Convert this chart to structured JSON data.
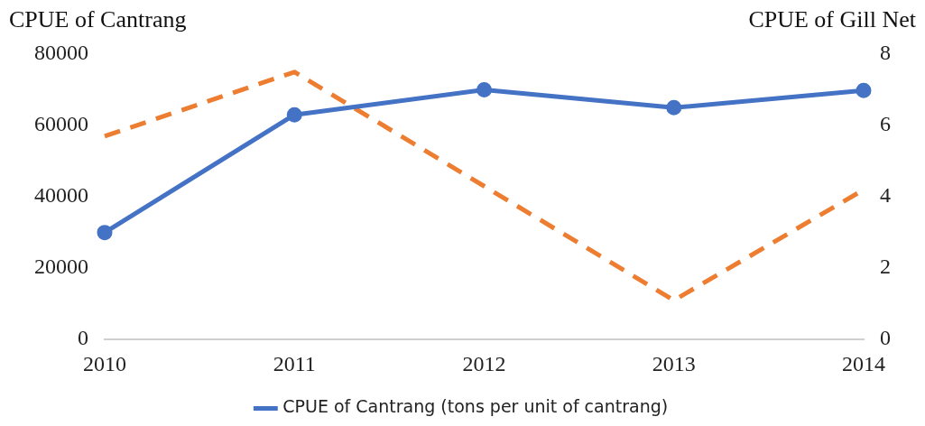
{
  "chart_data": {
    "type": "line",
    "ylabel": "CPUE of Cantrang",
    "y2label": "CPUE of Gill Net",
    "categories": [
      "2010",
      "2011",
      "2012",
      "2013",
      "2014"
    ],
    "series": [
      {
        "name": "CPUE of Cantrang (tons per unit of cantrang)",
        "color": "#4472c4",
        "values": [
          30000,
          63000,
          70000,
          65000,
          69800
        ],
        "marker": "circle",
        "line_style": "solid"
      },
      {
        "color": "#ed7d31",
        "axis": "y2",
        "values": [
          5.7,
          7.5,
          4.3,
          1.1,
          4.2
        ],
        "marker": "none",
        "line_style": "dashed"
      }
    ],
    "ylim": [
      0,
      80000
    ],
    "yticks": [
      0,
      20000,
      40000,
      60000,
      80000
    ],
    "y2lim": [
      0,
      8
    ],
    "y2ticks": [
      0,
      2,
      4,
      6,
      8
    ],
    "grid": false,
    "legend": "bottom"
  }
}
